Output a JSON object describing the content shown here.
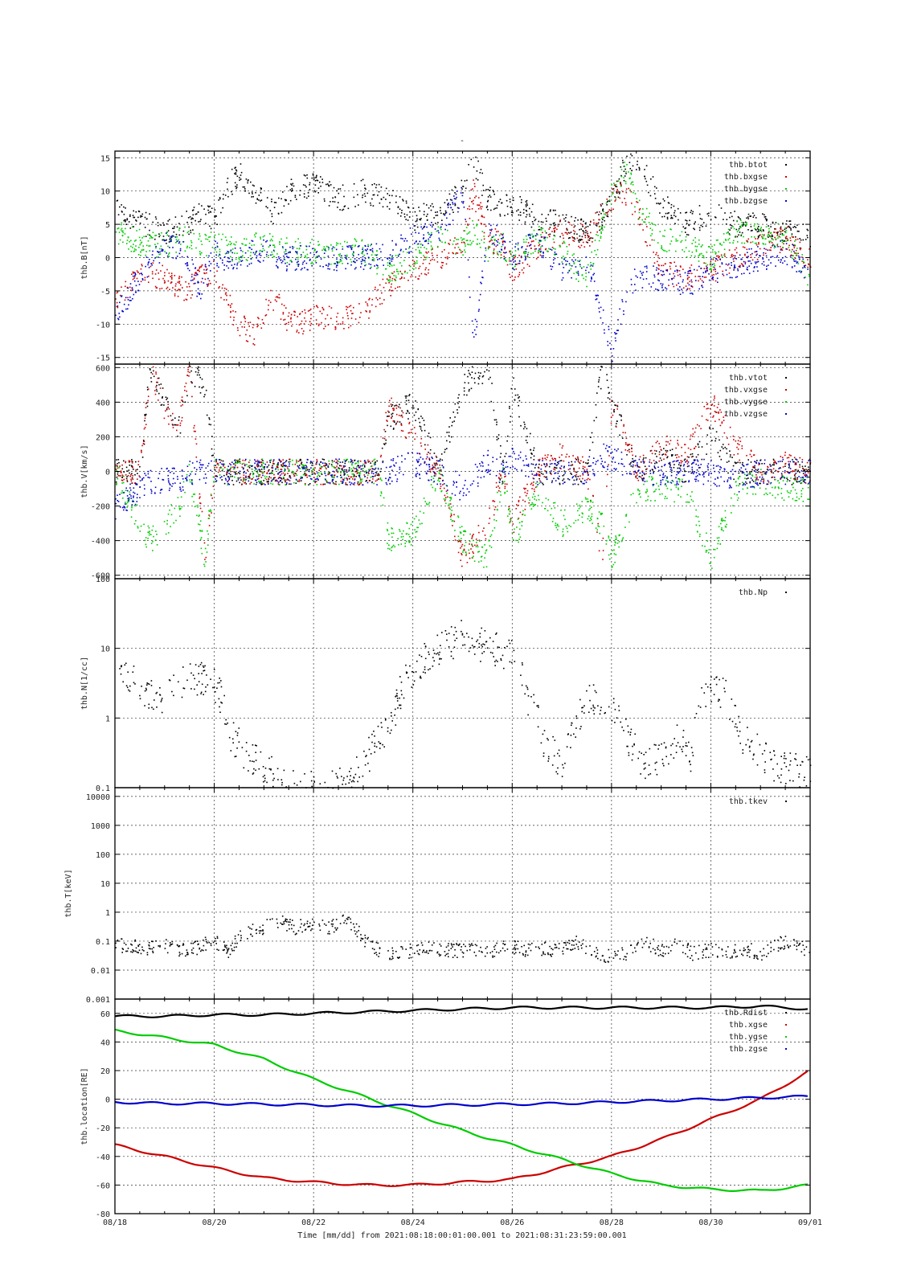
{
  "figure": {
    "title_mark": "-",
    "x_tick_labels": [
      "08/18",
      "08/20",
      "08/22",
      "08/24",
      "08/26",
      "08/28",
      "08/30",
      "09/01"
    ],
    "footer": "Time [mm/dd]  from 2021:08:18:00:01:00.001  to  2021:08:31:23:59:00.001"
  },
  "colors": {
    "black": "#000000",
    "red": "#cc0000",
    "green": "#00cc00",
    "blue": "#0000cc"
  },
  "chart_data": [
    {
      "type": "scatter",
      "ylabel": "thb.B[nT]",
      "ylim": [
        -16,
        16
      ],
      "yscale": "linear",
      "yticks": [
        15,
        10,
        5,
        0,
        -5,
        -10,
        -15
      ],
      "grid": true,
      "legend_position": "top-right",
      "x_unit": "days since 08/18",
      "series": [
        {
          "name": "thb.btot",
          "color": "black",
          "x": [
            0,
            0.3,
            0.6,
            1,
            1.4,
            1.7,
            2,
            2.2,
            2.5,
            2.8,
            3,
            3.2,
            3.5,
            4,
            4.5,
            5,
            5.5,
            6,
            6.5,
            7,
            7.2,
            7.5,
            7.8,
            8,
            8.5,
            9,
            9.5,
            10,
            10.3,
            10.5,
            11,
            11.5,
            12,
            12.5,
            13,
            13.5,
            14
          ],
          "y": [
            9,
            6,
            5,
            4,
            5,
            7,
            6,
            10,
            13,
            10,
            8,
            7,
            10,
            11,
            9,
            10,
            9,
            6,
            7,
            10,
            15,
            9,
            8,
            8,
            6,
            5,
            4,
            8,
            15,
            15,
            8,
            5,
            7,
            5,
            5,
            4,
            3
          ]
        },
        {
          "name": "thb.bxgse",
          "color": "red",
          "x": [
            0,
            0.3,
            0.6,
            1,
            1.4,
            1.7,
            2,
            2.2,
            2.5,
            2.8,
            3,
            3.2,
            3.5,
            4,
            4.5,
            5,
            5.5,
            6,
            6.5,
            7,
            7.2,
            7.5,
            7.8,
            8,
            8.5,
            9,
            9.5,
            10,
            10.3,
            10.5,
            11,
            11.5,
            12,
            12.5,
            13,
            13.5,
            14
          ],
          "y": [
            -6,
            -4,
            -2,
            -3,
            -5,
            -3,
            -2,
            -6,
            -10,
            -12,
            -8,
            -6,
            -10,
            -9,
            -9,
            -8,
            -4,
            -2,
            0,
            2,
            10,
            3,
            2,
            -2,
            2,
            4,
            3,
            9,
            10,
            7,
            -2,
            -3,
            -2,
            0,
            2,
            3,
            0
          ]
        },
        {
          "name": "thb.bygse",
          "color": "green",
          "x": [
            0,
            0.3,
            0.6,
            1,
            1.4,
            1.7,
            2,
            2.2,
            2.5,
            2.8,
            3,
            3.2,
            3.5,
            4,
            4.5,
            5,
            5.5,
            6,
            6.5,
            7,
            7.2,
            7.5,
            7.8,
            8,
            8.5,
            9,
            9.5,
            10,
            10.3,
            10.5,
            11,
            11.5,
            12,
            12.5,
            13,
            13.5,
            14
          ],
          "y": [
            4,
            3,
            2,
            2,
            3,
            2,
            2,
            2,
            1,
            2,
            2,
            2,
            1,
            1,
            1,
            1,
            -2,
            0,
            3,
            2,
            4,
            1,
            2,
            0,
            3,
            1,
            -3,
            10,
            13,
            8,
            3,
            2,
            0,
            4,
            4,
            3,
            -3
          ]
        },
        {
          "name": "thb.bzgse",
          "color": "blue",
          "x": [
            0,
            0.3,
            0.6,
            1,
            1.4,
            1.7,
            2,
            2.2,
            2.5,
            2.8,
            3,
            3.2,
            3.5,
            4,
            4.5,
            5,
            5.5,
            6,
            6.5,
            7,
            7.2,
            7.5,
            7.8,
            8,
            8.5,
            9,
            9.5,
            10,
            10.3,
            10.5,
            11,
            11.5,
            12,
            12.5,
            13,
            13.5,
            14
          ],
          "y": [
            -9,
            -5,
            -2,
            2,
            1,
            -5,
            1,
            -1,
            0,
            1,
            1,
            0,
            0,
            0,
            0,
            0,
            1,
            3,
            4,
            10,
            -13,
            5,
            2,
            0,
            3,
            -2,
            0,
            -14,
            -5,
            -3,
            -3,
            -4,
            -2,
            -1,
            0,
            1,
            -2
          ]
        }
      ]
    },
    {
      "type": "scatter",
      "ylabel": "thb.V[km/s]",
      "ylim": [
        -620,
        620
      ],
      "yscale": "linear",
      "yticks": [
        600,
        400,
        200,
        0,
        -200,
        -400,
        -600
      ],
      "grid": true,
      "legend_position": "top-right",
      "x_unit": "days since 08/18",
      "series": [
        {
          "name": "thb.vtot",
          "color": "black",
          "x": [
            0,
            0.5,
            0.7,
            1,
            1.3,
            1.5,
            1.8,
            2,
            2.5,
            3,
            4,
            5,
            5.3,
            5.5,
            6,
            6.5,
            7,
            7.5,
            7.8,
            8,
            8.5,
            9,
            9.5,
            9.8,
            10,
            10.5,
            11,
            11.5,
            12,
            12.5,
            13,
            13.5,
            14
          ],
          "y": [
            0,
            0,
            600,
            400,
            250,
            600,
            500,
            0,
            0,
            0,
            0,
            0,
            0,
            300,
            400,
            0,
            500,
            600,
            0,
            500,
            0,
            0,
            0,
            600,
            400,
            0,
            100,
            0,
            200,
            0,
            0,
            0,
            0
          ]
        },
        {
          "name": "thb.vxgse",
          "color": "red",
          "x": [
            0,
            0.5,
            0.7,
            1,
            1.3,
            1.5,
            1.8,
            2,
            2.5,
            3,
            4,
            5,
            5.3,
            5.5,
            6,
            6.5,
            7,
            7.5,
            7.8,
            8,
            8.5,
            9,
            9.5,
            9.8,
            10,
            10.5,
            11,
            11.5,
            12,
            12.5,
            13,
            13.5,
            14
          ],
          "y": [
            0,
            0,
            600,
            350,
            300,
            600,
            -500,
            0,
            0,
            0,
            0,
            0,
            0,
            400,
            200,
            0,
            -500,
            -300,
            0,
            -300,
            0,
            100,
            0,
            -500,
            400,
            0,
            150,
            100,
            400,
            150,
            0,
            50,
            0
          ]
        },
        {
          "name": "thb.vygse",
          "color": "green",
          "x": [
            0,
            0.5,
            0.7,
            1,
            1.3,
            1.5,
            1.8,
            2,
            2.5,
            3,
            4,
            5,
            5.3,
            5.5,
            6,
            6.5,
            7,
            7.5,
            7.8,
            8,
            8.5,
            9,
            9.5,
            9.8,
            10,
            10.5,
            11,
            11.5,
            12,
            12.5,
            13,
            13.5,
            14
          ],
          "y": [
            0,
            -300,
            -400,
            -300,
            -200,
            0,
            -500,
            0,
            0,
            0,
            0,
            0,
            0,
            -400,
            -350,
            0,
            -400,
            -500,
            0,
            -400,
            -100,
            -300,
            -200,
            -300,
            -500,
            -100,
            -100,
            -100,
            -500,
            -100,
            -50,
            -100,
            -100
          ]
        },
        {
          "name": "thb.vzgse",
          "color": "blue",
          "x": [
            0,
            0.5,
            0.7,
            1,
            1.3,
            1.5,
            1.8,
            2,
            2.5,
            3,
            4,
            5,
            5.3,
            5.5,
            6,
            6.5,
            7,
            7.5,
            7.8,
            8,
            8.5,
            9,
            9.5,
            9.8,
            10,
            10.5,
            11,
            11.5,
            12,
            12.5,
            13,
            13.5,
            14
          ],
          "y": [
            -200,
            -100,
            -50,
            -50,
            -50,
            0,
            0,
            0,
            0,
            0,
            0,
            0,
            0,
            0,
            50,
            0,
            -100,
            50,
            0,
            100,
            0,
            0,
            0,
            100,
            80,
            0,
            0,
            0,
            0,
            -50,
            0,
            0,
            0
          ]
        }
      ]
    },
    {
      "type": "scatter",
      "ylabel": "thb.N[1/cc]",
      "ylim": [
        0.1,
        100
      ],
      "yscale": "log",
      "yticks": [
        100,
        10,
        1,
        0.1
      ],
      "grid": true,
      "legend_position": "top-right",
      "x_unit": "days since 08/18",
      "series": [
        {
          "name": "thb.Np",
          "color": "black",
          "x": [
            0,
            0.3,
            0.6,
            1,
            1.3,
            1.6,
            2,
            2.3,
            2.6,
            3,
            3.3,
            3.6,
            4,
            4.3,
            4.6,
            5,
            5.3,
            5.6,
            6,
            6.3,
            6.6,
            7,
            7.3,
            7.6,
            8,
            8.3,
            8.6,
            9,
            9.3,
            9.6,
            10,
            10.3,
            10.6,
            11,
            11.3,
            11.6,
            12,
            12.3,
            12.6,
            13,
            13.3,
            13.6,
            14
          ],
          "y": [
            5,
            4,
            2.5,
            2,
            3,
            4,
            3,
            0.6,
            0.3,
            0.2,
            0.12,
            0.1,
            0.1,
            0.1,
            0.12,
            0.2,
            0.5,
            1,
            5,
            8,
            10,
            15,
            12,
            10,
            8,
            2,
            0.5,
            0.2,
            1,
            2,
            1.5,
            0.5,
            0.2,
            0.3,
            0.5,
            0.3,
            3,
            2,
            0.5,
            0.3,
            0.2,
            0.2,
            0.15
          ]
        }
      ]
    },
    {
      "type": "scatter",
      "ylabel": "thb.T[keV]",
      "ylim": [
        0.001,
        20000
      ],
      "yscale": "log",
      "yticks": [
        10000,
        1000,
        100,
        10,
        1,
        0.1,
        0.01,
        0.001
      ],
      "grid": true,
      "legend_position": "top-right",
      "x_unit": "days since 08/18",
      "series": [
        {
          "name": "thb.tkev",
          "color": "black",
          "x": [
            0,
            0.3,
            0.6,
            1,
            1.3,
            1.6,
            2,
            2.3,
            2.6,
            3,
            3.3,
            3.6,
            4,
            4.3,
            4.6,
            5,
            5.3,
            5.6,
            6,
            6.3,
            6.6,
            7,
            7.3,
            7.6,
            8,
            8.3,
            8.6,
            9,
            9.3,
            9.6,
            10,
            10.3,
            10.6,
            11,
            11.3,
            11.6,
            12,
            12.3,
            12.6,
            13,
            13.3,
            13.6,
            14
          ],
          "y": [
            0.08,
            0.07,
            0.06,
            0.07,
            0.05,
            0.06,
            0.1,
            0.03,
            0.2,
            0.3,
            0.5,
            0.3,
            0.4,
            0.3,
            0.5,
            0.1,
            0.05,
            0.04,
            0.05,
            0.06,
            0.05,
            0.05,
            0.06,
            0.05,
            0.07,
            0.05,
            0.06,
            0.05,
            0.1,
            0.04,
            0.03,
            0.04,
            0.1,
            0.05,
            0.08,
            0.04,
            0.05,
            0.04,
            0.06,
            0.04,
            0.08,
            0.1,
            0.03
          ]
        }
      ]
    },
    {
      "type": "line",
      "ylabel": "thb.location[RE]",
      "ylim": [
        -80,
        70
      ],
      "yscale": "linear",
      "yticks": [
        60,
        40,
        20,
        0,
        -20,
        -40,
        -60,
        -80
      ],
      "grid": true,
      "legend_position": "top-right",
      "x_unit": "days since 08/18",
      "series": [
        {
          "name": "thb.Rdist",
          "color": "black",
          "x": [
            0,
            1,
            2,
            3,
            4,
            5,
            6,
            7,
            8,
            9,
            10,
            11,
            12,
            13,
            14
          ],
          "y": [
            58,
            58,
            59,
            59,
            60,
            61,
            62,
            63,
            64,
            64,
            64,
            64,
            64,
            65,
            63
          ]
        },
        {
          "name": "thb.xgse",
          "color": "red",
          "x": [
            0,
            1,
            2,
            3,
            4,
            5,
            6,
            7,
            8,
            9,
            10,
            11,
            12,
            13,
            14
          ],
          "y": [
            -32,
            -40,
            -48,
            -55,
            -58,
            -60,
            -60,
            -58,
            -56,
            -48,
            -40,
            -28,
            -14,
            0,
            20
          ]
        },
        {
          "name": "thb.ygse",
          "color": "green",
          "x": [
            0,
            1,
            2,
            3,
            4,
            5,
            6,
            7,
            8,
            9,
            10,
            11,
            12,
            13,
            14
          ],
          "y": [
            48,
            43,
            38,
            28,
            14,
            2,
            -10,
            -22,
            -32,
            -42,
            -52,
            -60,
            -63,
            -64,
            -60
          ]
        },
        {
          "name": "thb.zgse",
          "color": "blue",
          "x": [
            0,
            1,
            2,
            3,
            4,
            5,
            6,
            7,
            8,
            9,
            10,
            11,
            12,
            13,
            14
          ],
          "y": [
            -2,
            -3,
            -3,
            -3.5,
            -4,
            -4.5,
            -4.5,
            -4,
            -3.5,
            -3,
            -2,
            -1,
            0,
            1,
            2
          ]
        }
      ]
    }
  ]
}
